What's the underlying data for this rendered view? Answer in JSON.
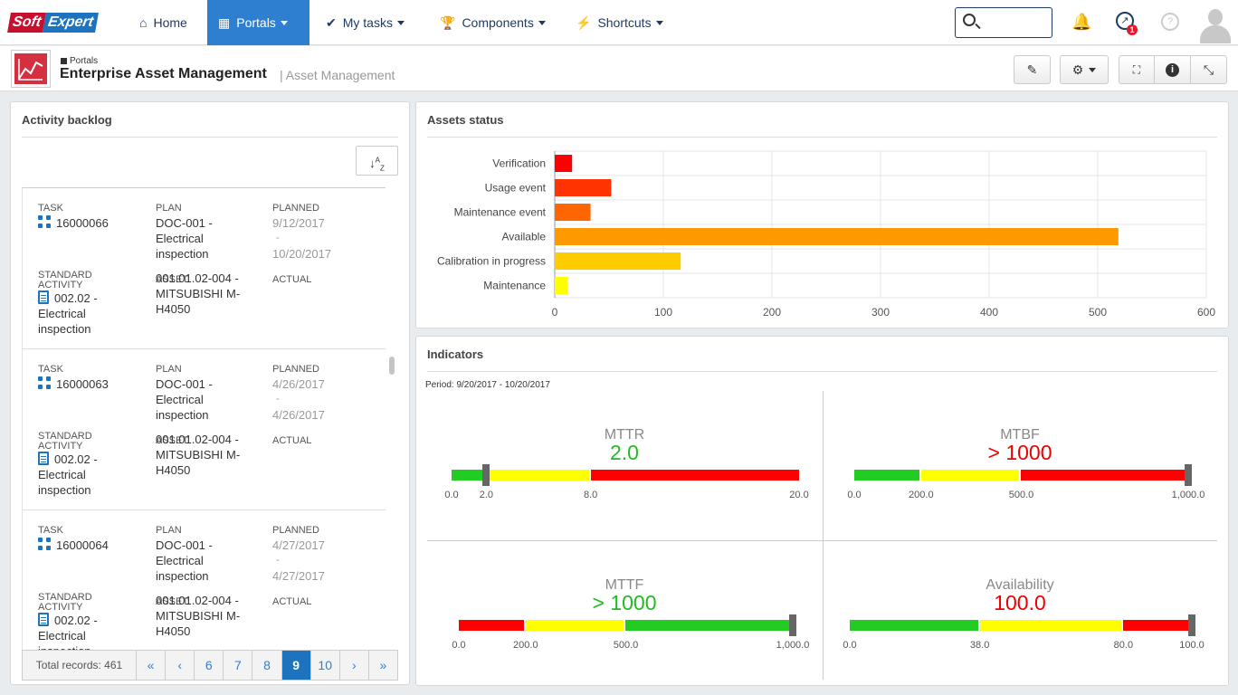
{
  "header": {
    "logo": {
      "part1": "Soft",
      "part2": "Expert"
    },
    "nav": [
      {
        "label": "Home",
        "icon": "home-icon"
      },
      {
        "label": "Portals",
        "icon": "grid-icon"
      },
      {
        "label": "My tasks",
        "icon": "check-icon"
      },
      {
        "label": "Components",
        "icon": "trophy-icon"
      },
      {
        "label": "Shortcuts",
        "icon": "bolt-icon"
      }
    ],
    "search": {
      "placeholder": ""
    },
    "notification_badge": "1"
  },
  "subheader": {
    "breadcrumb": "Portals",
    "title": "Enterprise Asset Management",
    "subtitle": "| Asset Management"
  },
  "backlog": {
    "title": "Activity backlog",
    "labels": {
      "task": "TASK",
      "plan": "PLAN",
      "planned": "PLANNED",
      "standard_activity": "STANDARD ACTIVITY",
      "asset": "ASSET",
      "actual": "ACTUAL"
    },
    "records": [
      {
        "task": "16000066",
        "plan": [
          "DOC-001 -",
          "Electrical",
          "inspection"
        ],
        "planned": [
          "9/12/2017",
          "-",
          "10/20/2017"
        ],
        "activity": [
          "002.02 -",
          "Electrical",
          "inspection"
        ],
        "asset": [
          "001.01.02-004 -",
          "MITSUBISHI M-",
          "H4050"
        ]
      },
      {
        "task": "16000063",
        "plan": [
          "DOC-001 -",
          "Electrical",
          "inspection"
        ],
        "planned": [
          "4/26/2017",
          "-",
          "4/26/2017"
        ],
        "activity": [
          "002.02 -",
          "Electrical",
          "inspection"
        ],
        "asset": [
          "001.01.02-004 -",
          "MITSUBISHI M-",
          "H4050"
        ]
      },
      {
        "task": "16000064",
        "plan": [
          "DOC-001 -",
          "Electrical",
          "inspection"
        ],
        "planned": [
          "4/27/2017",
          "-",
          "4/27/2017"
        ],
        "activity": [
          "002.02 -",
          "Electrical",
          "inspection"
        ],
        "asset": [
          "001.01.02-004 -",
          "MITSUBISHI M-",
          "H4050"
        ]
      }
    ],
    "pager": {
      "total": "Total records: 461",
      "pages": [
        "«",
        "‹",
        "6",
        "7",
        "8",
        "9",
        "10",
        "›",
        "»"
      ],
      "current": "9"
    }
  },
  "assets_status": {
    "title": "Assets status"
  },
  "chart_data": {
    "type": "bar",
    "orientation": "horizontal",
    "categories": [
      "Verification",
      "Usage event",
      "Maintenance event",
      "Available",
      "Calibration in progress",
      "Maintenance"
    ],
    "values": [
      16,
      52,
      33,
      519,
      116,
      12
    ],
    "colors": [
      "#ff0000",
      "#ff3300",
      "#ff6600",
      "#ff9900",
      "#ffcc00",
      "#ffff00"
    ],
    "xlim": [
      0,
      600
    ],
    "xticks": [
      0,
      100,
      200,
      300,
      400,
      500,
      600
    ],
    "grid": true
  },
  "indicators": {
    "title": "Indicators",
    "period": "Period: 9/20/2017 - 10/20/2017",
    "gauges": [
      {
        "name": "MTTR",
        "value": "2.0",
        "value_color": "#22bb22",
        "min": 0,
        "max": 20,
        "marker": 2,
        "bands": [
          {
            "to": 2,
            "color": "#22cc22"
          },
          {
            "to": 8,
            "color": "#ffff00"
          },
          {
            "to": 20,
            "color": "#ff0000"
          }
        ],
        "ticks": [
          "0.0",
          "2.0",
          "8.0",
          "20.0"
        ],
        "tick_values": [
          0,
          2,
          8,
          20
        ]
      },
      {
        "name": "MTBF",
        "value": "> 1000",
        "value_color": "#ee0000",
        "min": 0,
        "max": 1000,
        "marker": 1000,
        "bands": [
          {
            "to": 200,
            "color": "#22cc22"
          },
          {
            "to": 500,
            "color": "#ffff00"
          },
          {
            "to": 1000,
            "color": "#ff0000"
          }
        ],
        "ticks": [
          "0.0",
          "200.0",
          "500.0",
          "1,000.0"
        ],
        "tick_values": [
          0,
          200,
          500,
          1000
        ]
      },
      {
        "name": "MTTF",
        "value": "> 1000",
        "value_color": "#22bb22",
        "min": 0,
        "max": 1000,
        "marker": 1000,
        "bands": [
          {
            "to": 200,
            "color": "#ff0000"
          },
          {
            "to": 500,
            "color": "#ffff00"
          },
          {
            "to": 1000,
            "color": "#22cc22"
          }
        ],
        "ticks": [
          "0.0",
          "200.0",
          "500.0",
          "1,000.0"
        ],
        "tick_values": [
          0,
          200,
          500,
          1000
        ]
      },
      {
        "name": "Availability",
        "value": "100.0",
        "value_color": "#ee0000",
        "min": 0,
        "max": 100,
        "marker": 100,
        "bands": [
          {
            "to": 38,
            "color": "#22cc22"
          },
          {
            "to": 80,
            "color": "#ffff00"
          },
          {
            "to": 100,
            "color": "#ff0000"
          }
        ],
        "ticks": [
          "0.0",
          "38.0",
          "80.0",
          "100.0"
        ],
        "tick_values": [
          0,
          38,
          80,
          100
        ]
      }
    ]
  }
}
